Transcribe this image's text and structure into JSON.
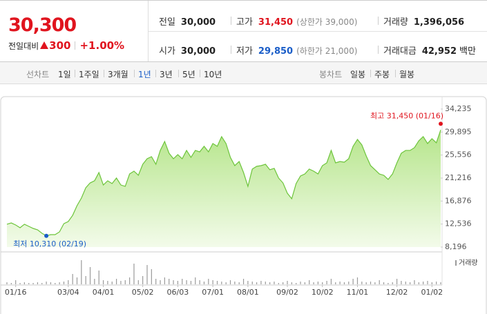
{
  "header": {
    "price": "30,300",
    "change_label": "전일대비",
    "change": "300",
    "change_rate": "+1.00%",
    "stats": [
      {
        "label": "전일",
        "value": "30,000"
      },
      {
        "label": "고가",
        "value": "31,450",
        "note": "(상한가 39,000)",
        "color": "#e0141e"
      },
      {
        "label": "거래량",
        "value": "1,396,056"
      },
      {
        "label": "시가",
        "value": "30,000"
      },
      {
        "label": "저가",
        "value": "29,850",
        "note": "(하한가 21,000)",
        "color": "#1a5dc8"
      },
      {
        "label": "거래대금",
        "value": "42,952",
        "unit": "백만"
      }
    ]
  },
  "tabs": {
    "line_label": "선차트",
    "line_periods": [
      "1일",
      "1주일",
      "3개월",
      "1년",
      "3년",
      "5년",
      "10년"
    ],
    "selected": "1년",
    "candle_label": "봉차트",
    "candle_periods": [
      "일봉",
      "주봉",
      "월봉"
    ]
  },
  "chart_data": {
    "type": "area",
    "color": "#6cc43a",
    "categories": [
      null,
      null,
      "01/16",
      null,
      null,
      null,
      null,
      null,
      null,
      null,
      null,
      null,
      null,
      null,
      "03/04",
      null,
      null,
      null,
      null,
      null,
      null,
      null,
      "04/01",
      null,
      null,
      null,
      null,
      null,
      null,
      null,
      null,
      "05/02",
      null,
      null,
      null,
      null,
      null,
      null,
      null,
      "06/03",
      null,
      null,
      null,
      null,
      null,
      null,
      null,
      "07/01",
      null,
      null,
      null,
      null,
      null,
      null,
      null,
      "08/01",
      null,
      null,
      null,
      null,
      null,
      null,
      null,
      null,
      "09/02",
      null,
      null,
      null,
      null,
      null,
      null,
      null,
      "10/02",
      null,
      null,
      null,
      null,
      null,
      null,
      null,
      "11/01",
      null,
      null,
      null,
      null,
      null,
      null,
      null,
      null,
      "12/02",
      null,
      null,
      null,
      null,
      null,
      null,
      null,
      "01/02",
      null,
      null
    ],
    "values": [
      12500,
      12750,
      12360,
      11840,
      12500,
      12100,
      11710,
      11450,
      10800,
      10310,
      10540,
      10540,
      11060,
      12620,
      13010,
      14180,
      16010,
      17440,
      19390,
      20300,
      20700,
      22260,
      19910,
      20700,
      20180,
      21220,
      19910,
      19650,
      21990,
      22520,
      21740,
      23820,
      24860,
      25250,
      23820,
      26430,
      28120,
      25900,
      24860,
      25640,
      24860,
      26430,
      25120,
      26430,
      26160,
      27210,
      26160,
      27730,
      27210,
      29030,
      27730,
      25120,
      23560,
      24340,
      22260,
      19650,
      22910,
      23430,
      23560,
      23820,
      22780,
      23040,
      21220,
      20300,
      18350,
      17310,
      20180,
      21610,
      21990,
      22910,
      22520,
      21990,
      23560,
      24080,
      26430,
      24080,
      24340,
      24210,
      24860,
      27210,
      28510,
      27470,
      25380,
      23560,
      22780,
      21990,
      21740,
      20960,
      21990,
      24080,
      25900,
      26430,
      26430,
      26950,
      28250,
      29030,
      27730,
      28640,
      27860,
      30300
    ],
    "ylim": [
      8196,
      34235
    ],
    "yticks": [
      {
        "value": 34235,
        "label": "34,235"
      },
      {
        "value": 29895,
        "label": "29,895"
      },
      {
        "value": 25556,
        "label": "25,556"
      },
      {
        "value": 21216,
        "label": "21,216"
      },
      {
        "value": 16876,
        "label": "16,876"
      },
      {
        "value": 12536,
        "label": "12,536"
      },
      {
        "value": 8196,
        "label": "8,196"
      }
    ],
    "annotations": [
      {
        "label": "최고 31,450 (01/16)",
        "value": 31450,
        "color": "#e0141e"
      },
      {
        "label": "최저 10,310 (02/19)",
        "value": 10310,
        "color": "#1a5dc8"
      }
    ],
    "volume": {
      "name": "거래량",
      "color": "#9a9a9a",
      "ylim": [
        0,
        44
      ],
      "values": [
        3,
        2,
        6,
        2,
        3,
        2,
        2,
        3,
        2,
        4,
        3,
        2,
        3,
        4,
        6,
        15,
        10,
        35,
        12,
        25,
        8,
        20,
        6,
        5,
        4,
        8,
        5,
        6,
        10,
        30,
        6,
        12,
        28,
        22,
        8,
        6,
        10,
        8,
        6,
        5,
        8,
        6,
        5,
        10,
        6,
        4,
        8,
        6,
        5,
        4,
        3,
        6,
        4,
        3,
        8,
        5,
        4,
        3,
        5,
        4,
        3,
        4,
        2,
        3,
        5,
        3,
        2,
        4,
        3,
        6,
        3,
        4,
        3,
        5,
        8,
        3,
        4,
        3,
        4,
        8,
        10,
        4,
        3,
        4,
        3,
        6,
        3,
        2,
        3,
        8,
        5,
        4,
        3,
        6,
        3,
        4,
        5,
        3,
        4,
        3
      ]
    }
  }
}
